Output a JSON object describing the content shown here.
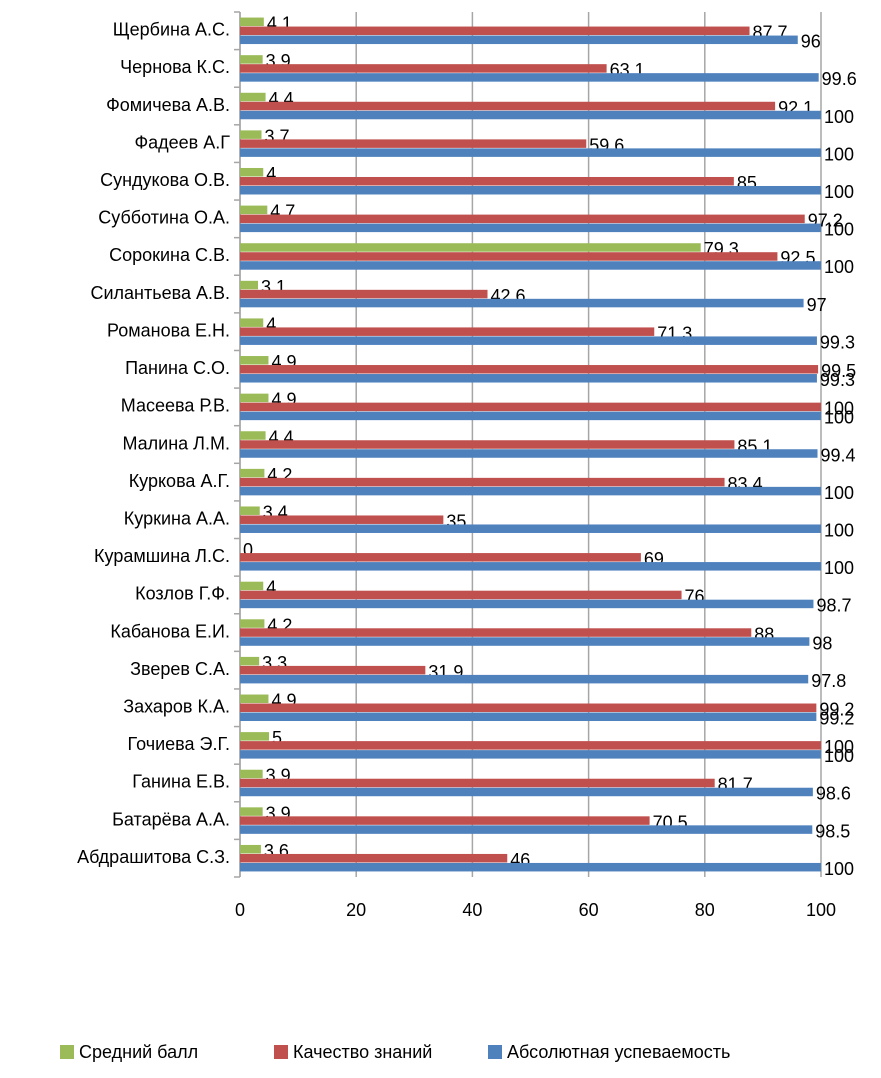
{
  "chart_data": {
    "type": "bar",
    "orientation": "horizontal",
    "categories": [
      "Абдрашитова С.З.",
      "Батарёва А.А.",
      "Ганина Е.В.",
      "Гочиева Э.Г.",
      "Захаров К.А.",
      "Зверев С.А.",
      "Кабанова Е.И.",
      "Козлов Г.Ф.",
      "Курамшина Л.С.",
      "Куркина А.А.",
      "Куркова А.Г.",
      "Малина Л.М.",
      "Масеева Р.В.",
      "Панина С.О.",
      "Романова Е.Н.",
      "Силантьева А.В.",
      "Сорокина С.В.",
      "Субботина О.А.",
      "Сундукова О.В.",
      "Фадеев А.Г",
      "Фомичева А.В.",
      "Чернова К.С.",
      "Щербина А.С."
    ],
    "series": [
      {
        "name": "Средний балл",
        "color": "#9bbb59",
        "values": [
          3.6,
          3.9,
          3.9,
          5,
          4.9,
          3.3,
          4.2,
          4,
          0,
          3.4,
          4.2,
          4.4,
          4.9,
          4.9,
          4,
          3.1,
          79.3,
          4.7,
          4,
          3.7,
          4.4,
          3.9,
          4.1
        ]
      },
      {
        "name": "Качество знаний",
        "color": "#c0504d",
        "values": [
          46,
          70.5,
          81.7,
          100,
          99.2,
          31.9,
          88,
          76,
          69,
          35,
          83.4,
          85.1,
          100,
          99.5,
          71.3,
          42.6,
          92.5,
          97.2,
          85,
          59.6,
          92.1,
          63.1,
          87.7
        ]
      },
      {
        "name": "Абсолютная успеваемость",
        "color": "#4f81bd",
        "values": [
          100,
          98.5,
          98.6,
          100,
          99.2,
          97.8,
          98,
          98.7,
          100,
          100,
          100,
          99.4,
          100,
          99.3,
          99.3,
          97,
          100,
          100,
          100,
          100,
          100,
          99.6,
          96
        ]
      }
    ],
    "xlim": [
      0,
      100
    ],
    "xticks": [
      0,
      20,
      40,
      60,
      80,
      100
    ],
    "grid": true,
    "legend": "bottom"
  }
}
